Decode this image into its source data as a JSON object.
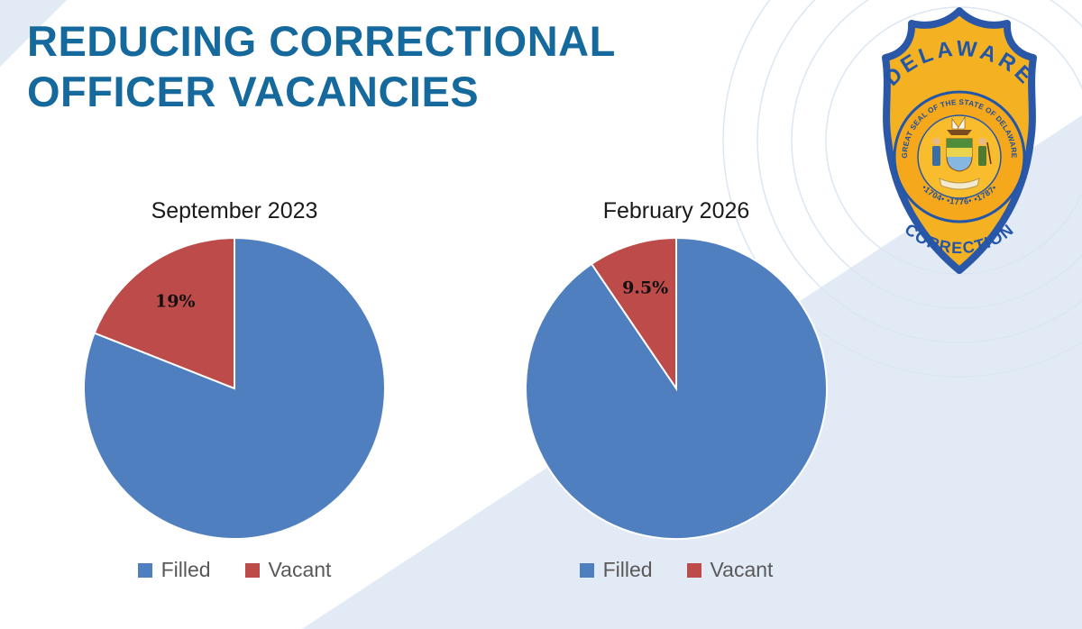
{
  "title": {
    "text": "REDUCING CORRECTIONAL OFFICER VACANCIES",
    "color": "#16699c"
  },
  "badge": {
    "top_text": "DELAWARE",
    "bottom_text": "CORRECTION",
    "seal_arc_top": "GREAT SEAL OF THE STATE OF DELAWARE",
    "seal_arc_bottom": "•1704• •1776• •1787•",
    "colors": {
      "shield_gold": "#f4b223",
      "outline_blue": "#2a57a8"
    }
  },
  "decor": {
    "wedge_color": "#e2eaf5",
    "circle_line_color": "#dce6f1"
  },
  "chart_data": [
    {
      "type": "pie",
      "title": "September 2023",
      "labels": [
        "Filled",
        "Vacant"
      ],
      "values": [
        81,
        19
      ],
      "colors": [
        "#4f7fbf",
        "#bd4b49"
      ],
      "data_labels": [
        "",
        "19%"
      ],
      "start_angle_deg": 0,
      "direction": "clockwise",
      "legend_position": "bottom"
    },
    {
      "type": "pie",
      "title": "February 2026",
      "labels": [
        "Filled",
        "Vacant"
      ],
      "values": [
        90.5,
        9.5
      ],
      "colors": [
        "#4f7fbf",
        "#bd4b49"
      ],
      "data_labels": [
        "",
        "9.5%"
      ],
      "start_angle_deg": 0,
      "direction": "clockwise",
      "legend_position": "bottom"
    }
  ]
}
